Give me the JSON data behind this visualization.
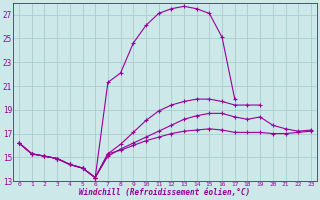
{
  "xlabel": "Windchill (Refroidissement éolien,°C)",
  "background_color": "#cce8e8",
  "grid_color": "#aacccc",
  "line_color": "#990099",
  "xlim": [
    -0.5,
    23.5
  ],
  "ylim": [
    13,
    28
  ],
  "xticks": [
    0,
    1,
    2,
    3,
    4,
    5,
    6,
    7,
    8,
    9,
    10,
    11,
    12,
    13,
    14,
    15,
    16,
    17,
    18,
    19,
    20,
    21,
    22,
    23
  ],
  "yticks": [
    13,
    15,
    17,
    19,
    21,
    23,
    25,
    27
  ],
  "series": [
    {
      "x": [
        0,
        1,
        2,
        3,
        4,
        5,
        6,
        7,
        8,
        9,
        10,
        11,
        12,
        13,
        14,
        15,
        16,
        17
      ],
      "y": [
        16.2,
        15.3,
        15.1,
        14.9,
        14.4,
        14.1,
        13.3,
        21.3,
        22.1,
        24.6,
        26.1,
        27.1,
        27.5,
        27.7,
        27.5,
        27.1,
        25.1,
        19.9
      ]
    },
    {
      "x": [
        0,
        1,
        2,
        3,
        4,
        5,
        6,
        7,
        8,
        9,
        10,
        11,
        12,
        13,
        14,
        15,
        16,
        17,
        18,
        19,
        20,
        21,
        22,
        23
      ],
      "y": [
        16.2,
        15.3,
        15.1,
        14.9,
        14.4,
        14.1,
        13.3,
        15.3,
        15.6,
        16.0,
        16.4,
        16.7,
        17.0,
        17.2,
        17.3,
        17.4,
        17.3,
        17.1,
        17.1,
        17.1,
        17.0,
        17.0,
        17.1,
        17.2
      ]
    },
    {
      "x": [
        0,
        1,
        2,
        3,
        4,
        5,
        6,
        7,
        8,
        9,
        10,
        11,
        12,
        13,
        14,
        15,
        16,
        17,
        18,
        19,
        20,
        21,
        22,
        23
      ],
      "y": [
        16.2,
        15.3,
        15.1,
        14.9,
        14.4,
        14.1,
        13.3,
        15.1,
        15.7,
        16.2,
        16.7,
        17.2,
        17.7,
        18.2,
        18.5,
        18.7,
        18.7,
        18.4,
        18.2,
        18.4,
        17.7,
        17.4,
        17.2,
        17.3
      ]
    },
    {
      "x": [
        0,
        1,
        2,
        3,
        4,
        5,
        6,
        7,
        8,
        9,
        10,
        11,
        12,
        13,
        14,
        15,
        16,
        17,
        18,
        19
      ],
      "y": [
        16.2,
        15.3,
        15.1,
        14.9,
        14.4,
        14.1,
        13.3,
        15.3,
        16.1,
        17.1,
        18.1,
        18.9,
        19.4,
        19.7,
        19.9,
        19.9,
        19.7,
        19.4,
        19.4,
        19.4
      ]
    }
  ]
}
